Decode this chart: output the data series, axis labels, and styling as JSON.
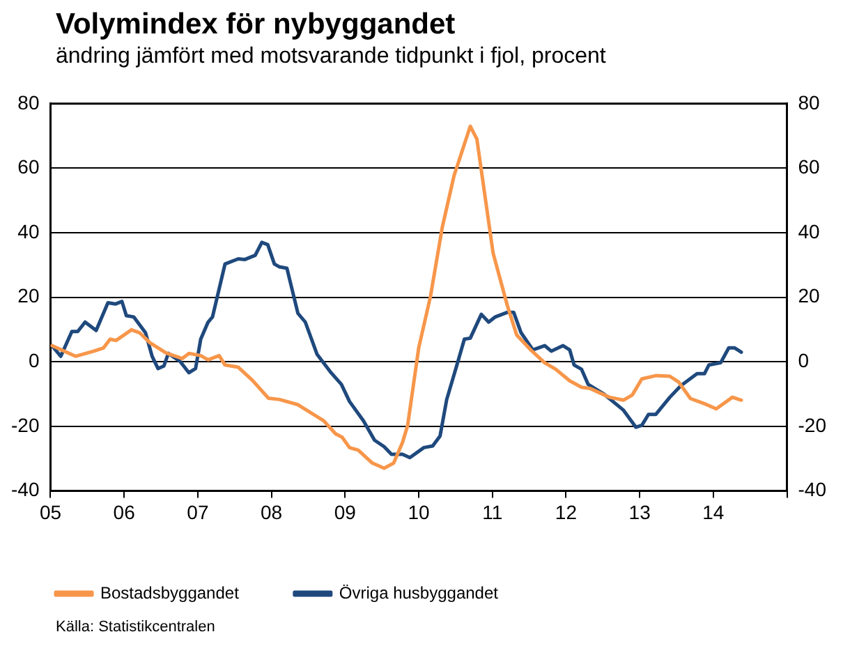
{
  "chart_data": {
    "type": "line",
    "title": "Volymindex för nybyggandet",
    "subtitle": "ändring jämfört med motsvarande tidpunkt i fjol, procent",
    "annotations": [
      "Källa: Statistikcentralen"
    ],
    "xlim": [
      2005,
      2015
    ],
    "xticks": [
      {
        "value": 2005,
        "label": "05"
      },
      {
        "value": 2006,
        "label": "06"
      },
      {
        "value": 2007,
        "label": "07"
      },
      {
        "value": 2008,
        "label": "08"
      },
      {
        "value": 2009,
        "label": "09"
      },
      {
        "value": 2010,
        "label": "10"
      },
      {
        "value": 2011,
        "label": "11"
      },
      {
        "value": 2012,
        "label": "12"
      },
      {
        "value": 2013,
        "label": "13"
      },
      {
        "value": 2014,
        "label": "14"
      },
      {
        "value": 2015,
        "label": null
      }
    ],
    "ylim": [
      -40,
      80
    ],
    "yticks": [
      -40,
      -20,
      0,
      20,
      40,
      60,
      80
    ],
    "y2lim": [
      -40,
      80
    ],
    "y2ticks": [
      -40,
      -20,
      0,
      20,
      40,
      60,
      80
    ],
    "grid": "y",
    "legend": "bottom",
    "marker": "none",
    "line_style": "solid",
    "series": [
      {
        "name": "Bostadsbyggandet",
        "color": "#f7964a",
        "x": [
          2005.02,
          2005.34,
          2005.59,
          2005.72,
          2005.81,
          2005.89,
          2006.1,
          2006.21,
          2006.35,
          2006.57,
          2006.79,
          2006.88,
          2007.04,
          2007.14,
          2007.29,
          2007.37,
          2007.55,
          2007.74,
          2007.96,
          2008.11,
          2008.36,
          2008.71,
          2008.87,
          2008.96,
          2009.06,
          2009.18,
          2009.37,
          2009.53,
          2009.66,
          2009.78,
          2009.85,
          2010.0,
          2010.16,
          2010.32,
          2010.48,
          2010.7,
          2010.79,
          2011.01,
          2011.2,
          2011.33,
          2011.52,
          2011.71,
          2011.86,
          2012.05,
          2012.21,
          2012.33,
          2012.59,
          2012.78,
          2012.9,
          2013.03,
          2013.22,
          2013.41,
          2013.53,
          2013.69,
          2013.88,
          2014.04,
          2014.26,
          2014.38
        ],
        "values": [
          5,
          1.7,
          3.3,
          4.3,
          7,
          6.6,
          9.9,
          9,
          5.9,
          2.7,
          1,
          2.6,
          1.9,
          0.6,
          1.9,
          -1,
          -1.7,
          -5.7,
          -11.3,
          -11.7,
          -13.3,
          -18.3,
          -22.3,
          -23.4,
          -26.6,
          -27.4,
          -31.4,
          -33,
          -31.4,
          -25,
          -19.7,
          4.3,
          20.3,
          41.7,
          57.7,
          73,
          69,
          33.7,
          17.7,
          8.3,
          3.7,
          -0.3,
          -2.3,
          -5.9,
          -7.9,
          -8.3,
          -11,
          -11.9,
          -10.3,
          -5.3,
          -4.3,
          -4.5,
          -6.3,
          -11.4,
          -13,
          -14.6,
          -11,
          -11.9
        ]
      },
      {
        "name": "Övriga husbyggandet",
        "color": "#1f497d",
        "x": [
          2005.02,
          2005.14,
          2005.29,
          2005.37,
          2005.47,
          2005.62,
          2005.78,
          2005.88,
          2005.97,
          2006.03,
          2006.13,
          2006.29,
          2006.38,
          2006.46,
          2006.54,
          2006.6,
          2006.76,
          2006.88,
          2006.97,
          2007.04,
          2007.14,
          2007.2,
          2007.37,
          2007.55,
          2007.64,
          2007.78,
          2007.87,
          2007.95,
          2008.04,
          2008.11,
          2008.21,
          2008.36,
          2008.46,
          2008.62,
          2008.81,
          2008.95,
          2009.06,
          2009.25,
          2009.4,
          2009.53,
          2009.63,
          2009.78,
          2009.88,
          2010.07,
          2010.19,
          2010.29,
          2010.38,
          2010.51,
          2010.62,
          2010.7,
          2010.85,
          2010.95,
          2011.04,
          2011.2,
          2011.29,
          2011.39,
          2011.55,
          2011.71,
          2011.8,
          2011.96,
          2012.05,
          2012.11,
          2012.21,
          2012.3,
          2012.52,
          2012.78,
          2012.95,
          2013.03,
          2013.12,
          2013.22,
          2013.41,
          2013.56,
          2013.78,
          2013.88,
          2013.94,
          2014.1,
          2014.21,
          2014.29,
          2014.38
        ],
        "values": [
          5,
          1.7,
          9.4,
          9.4,
          12.3,
          9.7,
          18.3,
          17.9,
          18.7,
          14.3,
          13.9,
          9,
          1.7,
          -2.1,
          -1.3,
          2.6,
          0.1,
          -3.4,
          -2.1,
          7,
          12.3,
          13.9,
          30.3,
          31.9,
          31.7,
          33,
          37,
          36.3,
          30.3,
          29.4,
          29,
          15,
          12.3,
          2.3,
          -3.4,
          -7,
          -12.3,
          -18.3,
          -24.3,
          -26.3,
          -28.7,
          -28.7,
          -29.7,
          -26.6,
          -26.1,
          -23,
          -11.7,
          -1.7,
          7,
          7.3,
          14.7,
          12.3,
          13.9,
          15.3,
          15.3,
          9,
          3.7,
          5,
          3.3,
          5,
          3.7,
          -1,
          -2.3,
          -7,
          -10.1,
          -15,
          -20.3,
          -19.7,
          -16.3,
          -16.3,
          -11,
          -7.4,
          -3.7,
          -3.7,
          -1,
          -0.3,
          4.3,
          4.3,
          3
        ]
      }
    ]
  }
}
